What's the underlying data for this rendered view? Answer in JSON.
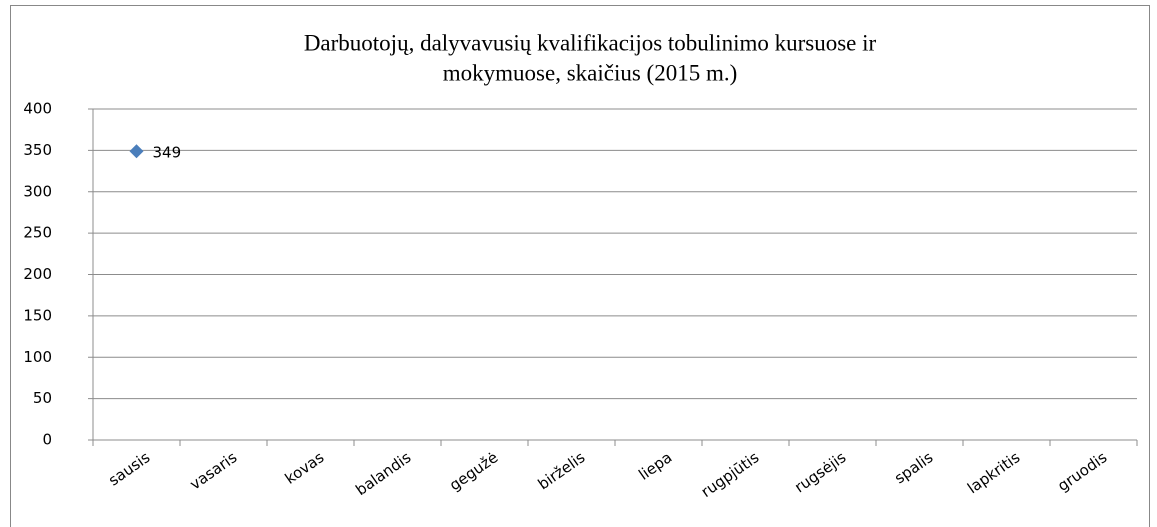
{
  "chart_data": {
    "type": "line",
    "title": [
      "Darbuotojų, dalyvavusių kvalifikacijos tobulinimo kursuose ir",
      "mokymuose, skaičius (2015 m.)"
    ],
    "categories": [
      "sausis",
      "vasaris",
      "kovas",
      "balandis",
      "gegužė",
      "birželis",
      "liepa",
      "rugpjūtis",
      "rugsėjis",
      "spalis",
      "lapkritis",
      "gruodis"
    ],
    "series": [
      {
        "color": "#4a7ebb",
        "values": [
          349,
          null,
          null,
          null,
          null,
          null,
          null,
          null,
          null,
          null,
          null,
          null
        ]
      }
    ],
    "ylim": [
      0,
      400
    ],
    "yticks": [
      0,
      50,
      100,
      150,
      200,
      250,
      300,
      350,
      400
    ],
    "grid": true
  }
}
